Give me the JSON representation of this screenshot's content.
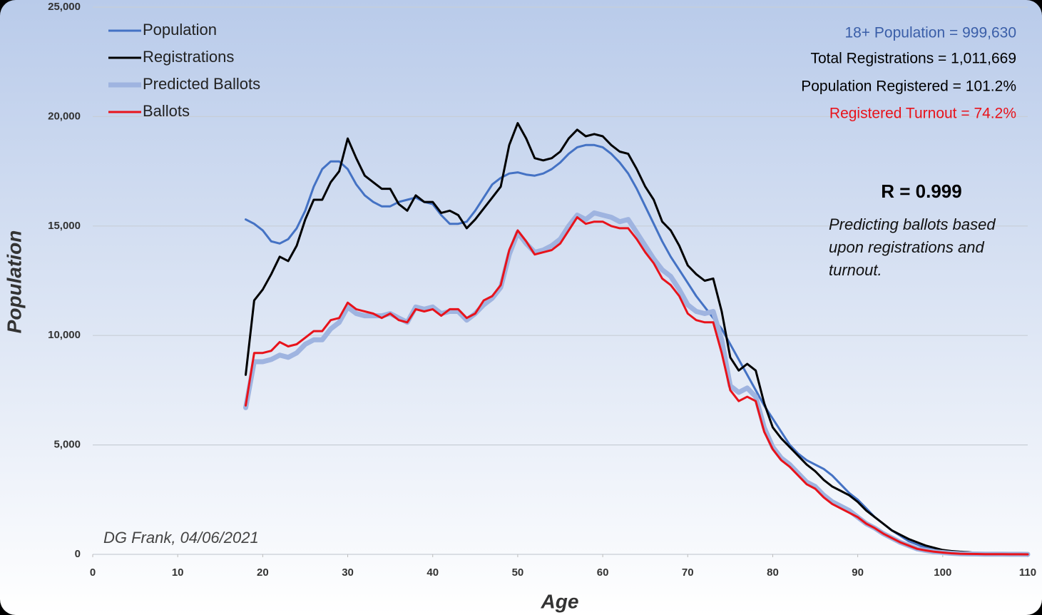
{
  "chart_data": {
    "type": "line",
    "xlabel": "Age",
    "ylabel": "Population",
    "xlim": [
      0,
      110
    ],
    "xticks": [
      0,
      10,
      20,
      30,
      40,
      50,
      60,
      70,
      80,
      90,
      100,
      110
    ],
    "ylim": [
      0,
      25000
    ],
    "yticks": [
      0,
      {
        "value": 5000,
        "label": "5,000"
      },
      {
        "value": 10000,
        "label": "10,000"
      },
      {
        "value": 15000,
        "label": "15,000"
      },
      {
        "value": 20000,
        "label": "20,000"
      },
      {
        "value": 25000,
        "label": "25,000"
      }
    ],
    "grid": true,
    "legend": "top-left",
    "x": [
      18,
      19,
      20,
      21,
      22,
      23,
      24,
      25,
      26,
      27,
      28,
      29,
      30,
      31,
      32,
      33,
      34,
      35,
      36,
      37,
      38,
      39,
      40,
      41,
      42,
      43,
      44,
      45,
      46,
      47,
      48,
      49,
      50,
      51,
      52,
      53,
      54,
      55,
      56,
      57,
      58,
      59,
      60,
      61,
      62,
      63,
      64,
      65,
      66,
      67,
      68,
      69,
      70,
      71,
      72,
      73,
      74,
      75,
      76,
      77,
      78,
      79,
      80,
      81,
      82,
      83,
      84,
      85,
      86,
      87,
      88,
      89,
      90,
      91,
      92,
      93,
      94,
      95,
      96,
      97,
      98,
      99,
      100,
      101,
      102,
      103,
      104,
      105,
      106,
      107,
      108,
      109,
      110
    ],
    "series": [
      {
        "name": "Population",
        "color": "#4472c4",
        "width": 3,
        "values": [
          15300,
          15100,
          14800,
          14300,
          14200,
          14400,
          14900,
          15700,
          16800,
          17600,
          17950,
          17950,
          17600,
          16900,
          16400,
          16100,
          15900,
          15900,
          16100,
          16200,
          16300,
          16100,
          16000,
          15500,
          15100,
          15100,
          15200,
          15700,
          16300,
          16900,
          17200,
          17400,
          17450,
          17350,
          17300,
          17400,
          17600,
          17900,
          18300,
          18600,
          18700,
          18700,
          18600,
          18300,
          17900,
          17400,
          16700,
          15900,
          15100,
          14300,
          13600,
          13000,
          12400,
          11800,
          11300,
          10800,
          10300,
          9600,
          8900,
          8200,
          7500,
          6800,
          6200,
          5600,
          5000,
          4600,
          4300,
          4100,
          3900,
          3600,
          3200,
          2800,
          2500,
          2100,
          1700,
          1400,
          1100,
          850,
          600,
          450,
          300,
          200,
          150,
          100,
          80,
          60,
          40,
          30,
          20,
          15,
          10,
          5,
          5
        ]
      },
      {
        "name": "Registrations",
        "color": "#000000",
        "width": 3,
        "values": [
          8200,
          11600,
          12100,
          12800,
          13600,
          13400,
          14100,
          15300,
          16200,
          16200,
          17000,
          17500,
          19000,
          18100,
          17300,
          17000,
          16700,
          16700,
          16000,
          15700,
          16400,
          16100,
          16100,
          15600,
          15700,
          15500,
          14900,
          15300,
          15800,
          16300,
          16800,
          18700,
          19700,
          19000,
          18100,
          18000,
          18100,
          18400,
          19000,
          19400,
          19100,
          19200,
          19100,
          18700,
          18400,
          18300,
          17600,
          16800,
          16200,
          15200,
          14800,
          14100,
          13200,
          12800,
          12500,
          12600,
          11100,
          9000,
          8400,
          8700,
          8400,
          6900,
          5800,
          5300,
          4900,
          4500,
          4100,
          3800,
          3400,
          3100,
          2900,
          2700,
          2400,
          2000,
          1700,
          1400,
          1100,
          900,
          700,
          550,
          400,
          300,
          200,
          150,
          120,
          100,
          60,
          40,
          30,
          20,
          15,
          10,
          5
        ]
      },
      {
        "name": "Predicted Ballots",
        "color": "#9fb4e0",
        "width": 7,
        "values": [
          6700,
          8800,
          8800,
          8900,
          9100,
          9000,
          9200,
          9600,
          9800,
          9800,
          10300,
          10600,
          11300,
          11000,
          10900,
          10900,
          10900,
          11000,
          10800,
          10600,
          11300,
          11200,
          11300,
          11000,
          11100,
          11100,
          10700,
          11000,
          11400,
          11700,
          12200,
          13700,
          14700,
          14200,
          13800,
          13900,
          14100,
          14400,
          15000,
          15500,
          15300,
          15600,
          15500,
          15400,
          15200,
          15300,
          14700,
          14100,
          13500,
          13000,
          12700,
          12100,
          11400,
          11100,
          11000,
          11100,
          9800,
          7700,
          7400,
          7600,
          7200,
          5800,
          4900,
          4400,
          4100,
          3700,
          3300,
          3100,
          2700,
          2400,
          2200,
          2000,
          1700,
          1400,
          1200,
          950,
          750,
          550,
          400,
          250,
          180,
          120,
          80,
          50,
          30,
          20,
          15,
          10,
          8,
          5,
          3,
          2,
          1
        ]
      },
      {
        "name": "Ballots",
        "color": "#e8131b",
        "width": 3,
        "values": [
          6800,
          9200,
          9200,
          9300,
          9700,
          9500,
          9600,
          9900,
          10200,
          10200,
          10700,
          10800,
          11500,
          11200,
          11100,
          11000,
          10800,
          11000,
          10700,
          10600,
          11200,
          11100,
          11200,
          10900,
          11200,
          11200,
          10800,
          11000,
          11600,
          11800,
          12300,
          13900,
          14800,
          14300,
          13700,
          13800,
          13900,
          14200,
          14800,
          15400,
          15100,
          15200,
          15200,
          15000,
          14900,
          14900,
          14400,
          13800,
          13300,
          12600,
          12300,
          11800,
          11000,
          10700,
          10600,
          10600,
          9200,
          7500,
          7000,
          7200,
          7000,
          5600,
          4800,
          4300,
          4000,
          3600,
          3200,
          3000,
          2600,
          2300,
          2100,
          1900,
          1700,
          1400,
          1200,
          950,
          750,
          550,
          400,
          250,
          180,
          120,
          80,
          50,
          30,
          20,
          15,
          10,
          8,
          5,
          3,
          2,
          1
        ]
      }
    ],
    "annotations": {
      "stats": [
        {
          "text": "18+ Population = 999,630",
          "color": "#3a5ea8"
        },
        {
          "text": "Total Registrations = 1,011,669",
          "color": "#000000"
        },
        {
          "text": "Population Registered = 101.2%",
          "color": "#000000"
        },
        {
          "text": "Registered Turnout = 74.2%",
          "color": "#e8131b"
        }
      ],
      "r_value": "R = 0.999",
      "note": [
        "Predicting ballots based",
        "upon registrations and",
        "turnout."
      ],
      "credit": "DG Frank, 04/06/2021"
    }
  }
}
